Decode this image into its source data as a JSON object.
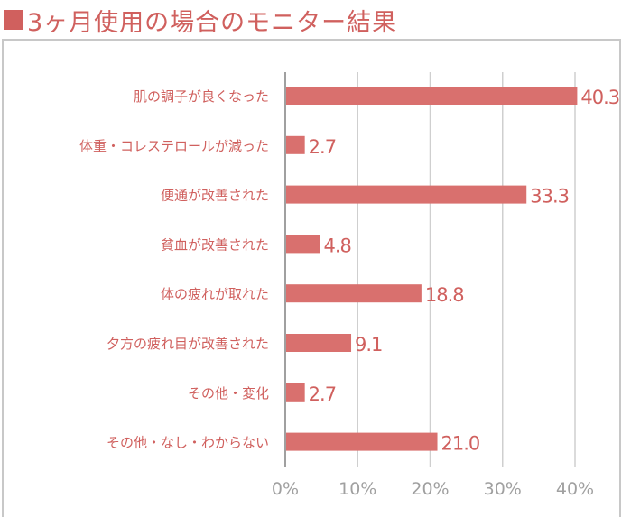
{
  "colors": {
    "bar": "#d9706e",
    "text": "#d0605e",
    "axis": "#a0a0a0",
    "grid": "#cfcfcf"
  },
  "chart_data": {
    "type": "bar",
    "orientation": "horizontal",
    "title": "3ヶ月使用の場合のモニター結果",
    "categories": [
      "肌の調子が良くなった",
      "体重・コレステロールが減った",
      "便通が改善された",
      "貧血が改善された",
      "体の疲れが取れた",
      "夕方の疲れ目が改善された",
      "その他・変化",
      "その他・なし・わからない"
    ],
    "values": [
      40.3,
      2.7,
      33.3,
      4.8,
      18.8,
      9.1,
      2.7,
      21.0
    ],
    "value_labels": [
      "40.3",
      "2.7",
      "33.3",
      "4.8",
      "18.8",
      "9.1",
      "2.7",
      "21.0"
    ],
    "xlim": [
      0,
      40
    ],
    "xticks": [
      "0%",
      "10%",
      "20%",
      "30%",
      "40%"
    ],
    "grid": true,
    "xlabel": "",
    "ylabel": ""
  }
}
